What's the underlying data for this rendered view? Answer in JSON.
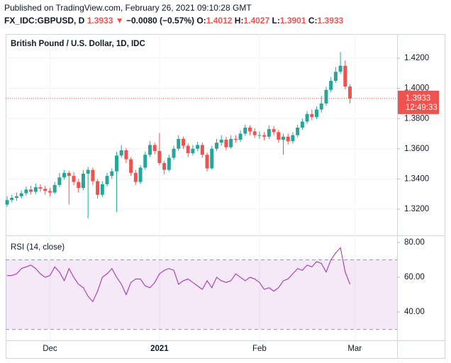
{
  "header": {
    "published": "Published on TradingView.com, February 26, 2021 09:10:28 GMT",
    "symbol": "FX_IDC:GBPUSD, D",
    "price": "1.3933",
    "arrow": "▼",
    "change": "−0.0080 (−0.57%)",
    "ohlc": [
      {
        "key": "O:",
        "value": "1.4012"
      },
      {
        "key": "H:",
        "value": "1.4027"
      },
      {
        "key": "L:",
        "value": "1.3901"
      },
      {
        "key": "C:",
        "value": "1.3933"
      }
    ]
  },
  "chart_data": [
    {
      "type": "candlestick",
      "title": "British Pound / U.S. Dollar, 1D, IDC",
      "up_color": "#26a69a",
      "down_color": "#ef5350",
      "countdown": "12:49:33",
      "grid": true,
      "xlim": [
        -0.3,
        81.9
      ],
      "xticks": [
        {
          "value": 9,
          "label": "Dec"
        },
        {
          "value": 32,
          "label": "2021"
        },
        {
          "value": 53,
          "label": "Feb"
        },
        {
          "value": 73,
          "label": "Mar"
        }
      ],
      "ylim": [
        1.3026,
        1.436
      ],
      "yticks": [
        {
          "value": 1.32,
          "label": "1.3200"
        },
        {
          "value": 1.34,
          "label": "1.3400"
        },
        {
          "value": 1.36,
          "label": "1.3600"
        },
        {
          "value": 1.38,
          "label": "1.3800"
        },
        {
          "value": 1.4,
          "label": "1.4000"
        },
        {
          "value": 1.42,
          "label": "1.4200"
        }
      ],
      "open": [
        1.323,
        1.326,
        1.3275,
        1.3285,
        1.3305,
        1.333,
        1.3315,
        1.3345,
        1.3335,
        1.332,
        1.331,
        1.336,
        1.341,
        1.344,
        1.342,
        1.338,
        1.334,
        1.3435,
        1.346,
        1.3385,
        1.3295,
        1.3365,
        1.342,
        1.345,
        1.3555,
        1.359,
        1.353,
        1.344,
        1.338,
        1.3475,
        1.356,
        1.3625,
        1.3585,
        1.3505,
        1.346,
        1.354,
        1.36,
        1.3665,
        1.362,
        1.357,
        1.36,
        1.3625,
        1.356,
        1.347,
        1.36,
        1.364,
        1.366,
        1.361,
        1.3665,
        1.366,
        1.37,
        1.374,
        1.3715,
        1.369,
        1.369,
        1.368,
        1.373,
        1.371,
        1.366,
        1.368,
        1.365,
        1.369,
        1.374,
        1.378,
        1.383,
        1.381,
        1.386,
        1.39,
        1.399,
        1.405,
        1.411,
        1.415,
        1.4012
      ],
      "high": [
        1.3285,
        1.3295,
        1.331,
        1.3325,
        1.335,
        1.3355,
        1.337,
        1.3365,
        1.3355,
        1.334,
        1.338,
        1.344,
        1.346,
        1.3455,
        1.3445,
        1.34,
        1.346,
        1.348,
        1.3475,
        1.34,
        1.3385,
        1.344,
        1.347,
        1.358,
        1.3625,
        1.3605,
        1.3545,
        1.346,
        1.349,
        1.358,
        1.365,
        1.364,
        1.3705,
        1.352,
        1.356,
        1.362,
        1.369,
        1.368,
        1.3635,
        1.3625,
        1.3645,
        1.364,
        1.3575,
        1.362,
        1.3665,
        1.369,
        1.368,
        1.369,
        1.369,
        1.372,
        1.376,
        1.3755,
        1.3735,
        1.3715,
        1.371,
        1.3755,
        1.375,
        1.3725,
        1.37,
        1.37,
        1.371,
        1.376,
        1.38,
        1.385,
        1.386,
        1.388,
        1.395,
        1.401,
        1.4075,
        1.414,
        1.4241,
        1.4185,
        1.4027
      ],
      "low": [
        1.3215,
        1.3245,
        1.3255,
        1.327,
        1.329,
        1.3295,
        1.33,
        1.3315,
        1.3295,
        1.3285,
        1.33,
        1.3345,
        1.3395,
        1.323,
        1.336,
        1.331,
        1.3325,
        1.314,
        1.336,
        1.327,
        1.328,
        1.335,
        1.34,
        1.318,
        1.354,
        1.3505,
        1.342,
        1.336,
        1.3365,
        1.346,
        1.3545,
        1.3565,
        1.349,
        1.343,
        1.345,
        1.3525,
        1.3585,
        1.36,
        1.3545,
        1.3555,
        1.3585,
        1.354,
        1.345,
        1.346,
        1.3585,
        1.362,
        1.359,
        1.36,
        1.364,
        1.3645,
        1.3685,
        1.369,
        1.367,
        1.3665,
        1.3655,
        1.3665,
        1.369,
        1.364,
        1.356,
        1.363,
        1.3635,
        1.3675,
        1.3725,
        1.3765,
        1.379,
        1.3795,
        1.384,
        1.3885,
        1.3975,
        1.4035,
        1.4095,
        1.3995,
        1.3901
      ],
      "close": [
        1.326,
        1.3275,
        1.3285,
        1.3305,
        1.333,
        1.3315,
        1.3345,
        1.3335,
        1.332,
        1.331,
        1.336,
        1.341,
        1.344,
        1.342,
        1.338,
        1.334,
        1.3435,
        1.346,
        1.3385,
        1.3295,
        1.3365,
        1.342,
        1.345,
        1.3555,
        1.359,
        1.353,
        1.344,
        1.338,
        1.3475,
        1.356,
        1.3625,
        1.3585,
        1.3505,
        1.346,
        1.354,
        1.36,
        1.3665,
        1.362,
        1.357,
        1.36,
        1.3625,
        1.356,
        1.347,
        1.36,
        1.364,
        1.366,
        1.361,
        1.3665,
        1.366,
        1.37,
        1.374,
        1.3715,
        1.369,
        1.369,
        1.368,
        1.373,
        1.371,
        1.366,
        1.368,
        1.365,
        1.369,
        1.374,
        1.378,
        1.383,
        1.381,
        1.386,
        1.39,
        1.399,
        1.405,
        1.411,
        1.415,
        1.4012,
        1.3933
      ]
    },
    {
      "type": "line",
      "title": "RSI (14, close)",
      "color": "#9c27b0",
      "band_color": "#9c27b0",
      "bands": [
        70,
        30
      ],
      "ylim": [
        23.7,
        84.1
      ],
      "yticks": [
        {
          "value": 40,
          "label": "40.00"
        },
        {
          "value": 60,
          "label": "60.00"
        },
        {
          "value": 80,
          "label": "80.00"
        }
      ],
      "values": [
        61,
        61,
        62,
        65,
        66,
        67,
        65,
        62,
        60,
        61,
        66,
        63,
        58,
        65,
        60,
        56,
        54,
        49,
        46,
        52,
        60,
        62,
        65,
        60,
        56,
        50,
        57,
        59,
        59,
        55,
        54,
        57,
        62,
        64,
        65,
        64,
        56,
        58,
        59,
        57,
        55,
        53,
        58,
        54,
        60,
        58,
        57,
        58,
        62,
        60,
        58,
        60,
        59,
        57,
        53,
        54,
        52,
        54,
        58,
        59,
        62,
        65,
        64,
        67,
        66,
        69,
        68,
        63,
        70,
        74,
        77,
        63,
        56
      ]
    }
  ]
}
